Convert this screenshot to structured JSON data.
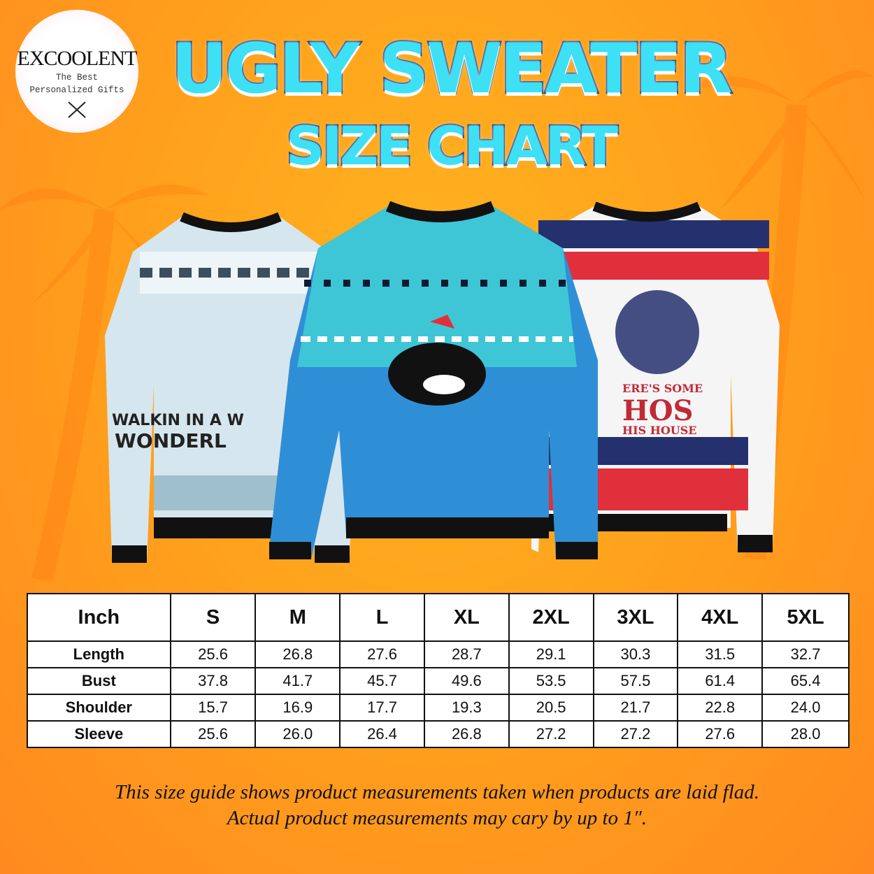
{
  "logo": {
    "brand": "EXCOOLENT",
    "tagline_1": "The Best",
    "tagline_2": "Personalized Gifts"
  },
  "title": {
    "line_1": "UGLY SWEATER",
    "line_2": "SIZE CHART"
  },
  "sweaters": [
    {
      "text_1": "WALKIN IN A W",
      "text_2": "WONDERL",
      "colors": {
        "body": "#d6e6ee",
        "accent": "#3d4f5c"
      }
    },
    {
      "colors": {
        "body": "#2f8fd6",
        "yoke": "#3fc6d6",
        "accent": "#0c1a33"
      }
    },
    {
      "text_1": "ERE'S SOME",
      "text_2": "HOS",
      "text_3": "HIS HOUSE",
      "colors": {
        "body": "#f5f5f5",
        "red": "#e0303c",
        "navy": "#25306e"
      }
    }
  ],
  "table": {
    "header": [
      "Inch",
      "S",
      "M",
      "L",
      "XL",
      "2XL",
      "3XL",
      "4XL",
      "5XL"
    ],
    "rows": [
      {
        "label": "Length",
        "values": [
          "25.6",
          "26.8",
          "27.6",
          "28.7",
          "29.1",
          "30.3",
          "31.5",
          "32.7"
        ]
      },
      {
        "label": "Bust",
        "values": [
          "37.8",
          "41.7",
          "45.7",
          "49.6",
          "53.5",
          "57.5",
          "61.4",
          "65.4"
        ]
      },
      {
        "label": "Shoulder",
        "values": [
          "15.7",
          "16.9",
          "17.7",
          "19.3",
          "20.5",
          "21.7",
          "22.8",
          "24.0"
        ]
      },
      {
        "label": "Sleeve",
        "values": [
          "25.6",
          "26.0",
          "26.4",
          "26.8",
          "27.2",
          "27.2",
          "27.6",
          "28.0"
        ]
      }
    ]
  },
  "note": {
    "line_1": "This size guide shows product measurements taken when products are laid flad.",
    "line_2": "Actual product measurements may cary by up to 1″."
  },
  "colors": {
    "background": "#ffa21c",
    "title_fill": "#3ee0f5",
    "title_outline": "#0b3a8a"
  }
}
